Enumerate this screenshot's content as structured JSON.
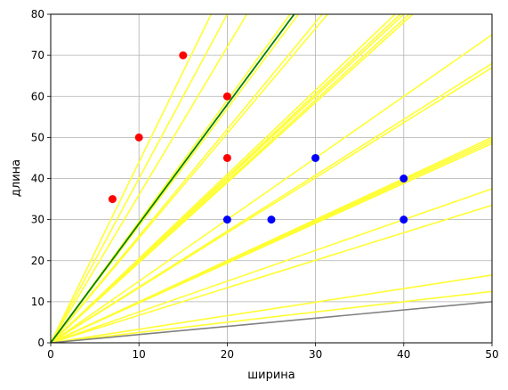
{
  "chart_data": {
    "type": "scatter",
    "title": "",
    "xlabel": "ширина",
    "ylabel": "длина",
    "xlim": [
      0,
      50
    ],
    "ylim": [
      0,
      80
    ],
    "xticks": [
      0,
      10,
      20,
      30,
      40,
      50
    ],
    "yticks": [
      0,
      10,
      20,
      30,
      40,
      50,
      60,
      70,
      80
    ],
    "grid": true,
    "colors": {
      "class_a": "#ff0000",
      "class_b": "#0000ff",
      "candidate_lines": "#ffff33",
      "best_line": "#008000",
      "baseline": "#808080"
    },
    "points": {
      "red": [
        [
          7,
          35
        ],
        [
          10,
          50
        ],
        [
          15,
          70
        ],
        [
          20,
          60
        ],
        [
          20,
          45
        ]
      ],
      "blue": [
        [
          20,
          30
        ],
        [
          25,
          30
        ],
        [
          30,
          45
        ],
        [
          40,
          40
        ],
        [
          40,
          30
        ]
      ]
    },
    "candidate_slopes": [
      4.4,
      4.0,
      3.6,
      2.95,
      2.9,
      2.85,
      2.6,
      2.55,
      2.05,
      2.02,
      2.0,
      1.97,
      1.95,
      1.5,
      1.36,
      1.34,
      1.0,
      0.99,
      0.98,
      0.97,
      0.75,
      0.67,
      0.33,
      0.25
    ],
    "best_line_slope": 2.9,
    "baseline_slope": 0.2
  }
}
